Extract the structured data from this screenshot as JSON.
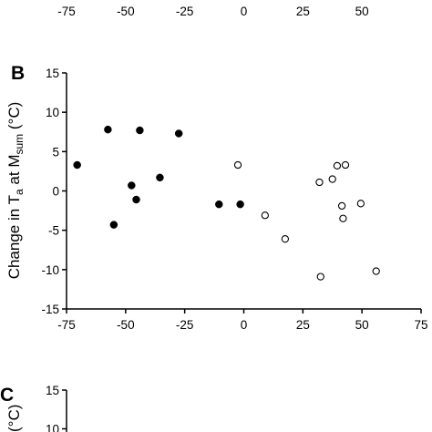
{
  "top_strip": {
    "x_tick_labels": [
      "-75",
      "-50",
      "-25",
      "0",
      "25",
      "50"
    ]
  },
  "chart_data": [
    {
      "panel": "B",
      "type": "scatter",
      "title": "",
      "xlabel": "",
      "ylabel": {
        "prefix": "Change in T",
        "sub1": "a",
        "middle": " at M",
        "sub2": "sum",
        "suffix": " (°C)"
      },
      "xlim": [
        -75,
        75
      ],
      "ylim": [
        -15,
        15
      ],
      "x_ticks": [
        -75,
        -50,
        -25,
        0,
        25,
        50,
        75
      ],
      "y_ticks": [
        15,
        10,
        5,
        0,
        -5,
        -10,
        -15
      ],
      "grid": false,
      "legend": "none",
      "colors": {
        "filled": "#000000",
        "open_fill": "#ffffff",
        "open_stroke": "#000000",
        "axis": "#000000"
      },
      "series": [
        {
          "marker": "filled-circle",
          "points": [
            {
              "x": -70.5,
              "y": 3.3
            },
            {
              "x": -57.5,
              "y": 7.8
            },
            {
              "x": -55,
              "y": -4.3
            },
            {
              "x": -47.5,
              "y": 0.7
            },
            {
              "x": -45.5,
              "y": -1.1
            },
            {
              "x": -44,
              "y": 7.7
            },
            {
              "x": -35.5,
              "y": 1.7
            },
            {
              "x": -27.5,
              "y": 7.3
            },
            {
              "x": -10.5,
              "y": -1.7
            },
            {
              "x": -1.5,
              "y": -1.7
            }
          ]
        },
        {
          "marker": "open-circle",
          "points": [
            {
              "x": -2.5,
              "y": 3.3
            },
            {
              "x": 9,
              "y": -3.1
            },
            {
              "x": 17.5,
              "y": -6.1
            },
            {
              "x": 32,
              "y": 1.1
            },
            {
              "x": 32.5,
              "y": -10.9
            },
            {
              "x": 37.5,
              "y": 1.5
            },
            {
              "x": 39.5,
              "y": 3.2
            },
            {
              "x": 41.5,
              "y": -1.9
            },
            {
              "x": 42,
              "y": -3.5
            },
            {
              "x": 43,
              "y": 3.3
            },
            {
              "x": 49.5,
              "y": -1.6
            },
            {
              "x": 56,
              "y": -10.2
            }
          ]
        }
      ]
    },
    {
      "panel": "C",
      "type": "scatter",
      "title": "",
      "xlabel": "",
      "ylabel": {
        "partial": "(°C)"
      },
      "y_ticks": [
        15,
        10
      ],
      "grid": false,
      "legend": "none"
    }
  ]
}
